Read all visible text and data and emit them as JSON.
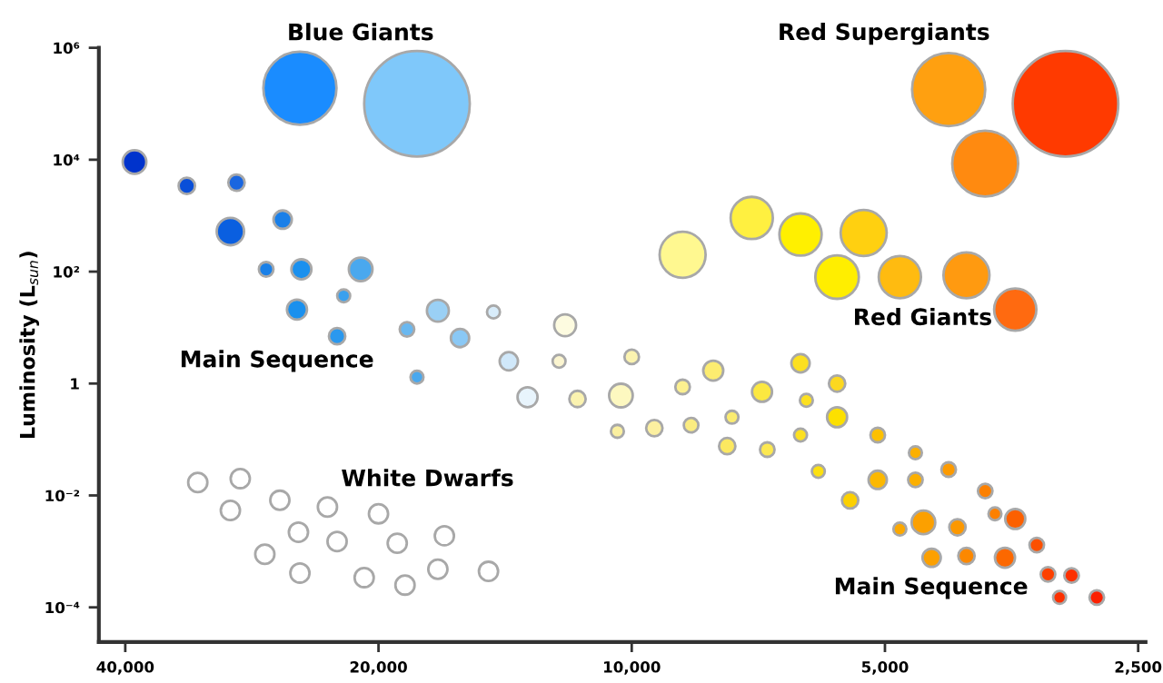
{
  "chart_data": {
    "type": "bubble",
    "ylabel": "Luminosity (L$_{sun}$)",
    "log": "xy",
    "grid": false,
    "legend": false,
    "xlim": [
      43000,
      2450
    ],
    "ylim": [
      2.4e-05,
      1000000
    ],
    "xticks": [
      {
        "value": 40000,
        "label": "40,000"
      },
      {
        "value": 20000,
        "label": "20,000"
      },
      {
        "value": 10000,
        "label": "10,000"
      },
      {
        "value": 5000,
        "label": "5,000"
      },
      {
        "value": 2500,
        "label": "2,500"
      }
    ],
    "yticks": [
      {
        "value": 0.0001,
        "label": "10⁻⁴"
      },
      {
        "value": 0.01,
        "label": "10⁻²"
      },
      {
        "value": 1,
        "label": "1"
      },
      {
        "value": 100,
        "label": "10²"
      },
      {
        "value": 10000,
        "label": "10⁴"
      },
      {
        "value": 1000000,
        "label": "10⁶"
      }
    ],
    "annotations": [
      "Blue Giants",
      "Red Supergiants",
      "Red Giants",
      "Main Sequence",
      "White Dwarfs",
      "Main Sequence"
    ],
    "series": [
      {
        "x": [
          24800,
          18000,
          39000,
          33800,
          29500,
          30000,
          26000,
          27200,
          24700,
          21000,
          25000,
          22000,
          22400,
          18500,
          17000,
          16000,
          14600,
          12000,
          18000,
          14000,
          12200,
          13300,
          11600,
          32800,
          29200,
          30000,
          26200,
          23000,
          20000,
          24900,
          22400,
          19000,
          16700,
          27300,
          24800,
          20800,
          18600,
          17000,
          14800,
          4200,
          3050,
          3800,
          8700,
          7200,
          6300,
          5300,
          5700,
          4800,
          4000,
          3500,
          10000,
          10300,
          10400,
          9400,
          8700,
          8000,
          8500,
          7600,
          7700,
          7000,
          6900,
          6300,
          6200,
          5700,
          5700,
          6300,
          6000,
          5500,
          5100,
          5100,
          4600,
          4600,
          4200,
          4800,
          4500,
          4100,
          3800,
          3700,
          3500,
          4400,
          4000,
          3600,
          3300,
          3200,
          3000,
          3100,
          2800
        ],
        "values": [
          190000,
          100000,
          9100,
          3400,
          3900,
          520,
          850,
          110,
          110,
          110,
          21,
          37,
          7.0,
          9.3,
          20,
          6.5,
          19,
          11,
          1.3,
          2.5,
          2.5,
          0.57,
          0.53,
          0.017,
          0.02,
          0.0054,
          0.0082,
          0.0062,
          0.0047,
          0.0022,
          0.0015,
          0.0014,
          0.0019,
          0.00089,
          0.00041,
          0.00034,
          0.00025,
          0.00048,
          0.00044,
          180000,
          100000,
          8500,
          200,
          910,
          460,
          490,
          80,
          80,
          86,
          21,
          3.0,
          0.61,
          0.14,
          0.16,
          0.87,
          1.7,
          0.18,
          0.25,
          0.076,
          0.71,
          0.066,
          2.3,
          0.5,
          1,
          0.25,
          0.12,
          0.027,
          0.0082,
          0.12,
          0.019,
          0.058,
          0.019,
          0.029,
          0.0025,
          0.0033,
          0.0027,
          0.012,
          0.0047,
          0.0038,
          0.00077,
          0.00083,
          0.00077,
          0.0013,
          0.00039,
          0.00037,
          0.00015,
          0.00015
        ],
        "sizes": [
          0.48,
          1,
          0.05,
          0.024,
          0.024,
          0.067,
          0.03,
          0.019,
          0.036,
          0.05,
          0.036,
          0.015,
          0.024,
          0.019,
          0.043,
          0.03,
          0.015,
          0.043,
          0.015,
          0.03,
          0.015,
          0.036,
          0.024,
          0.033,
          0.033,
          0.033,
          0.033,
          0.033,
          0.033,
          0.033,
          0.033,
          0.033,
          0.033,
          0.033,
          0.033,
          0.033,
          0.033,
          0.033,
          0.033,
          0.48,
          1,
          0.39,
          0.19,
          0.16,
          0.16,
          0.19,
          0.17,
          0.16,
          0.19,
          0.16,
          0.019,
          0.05,
          0.015,
          0.024,
          0.019,
          0.036,
          0.019,
          0.015,
          0.024,
          0.036,
          0.019,
          0.03,
          0.015,
          0.024,
          0.036,
          0.015,
          0.015,
          0.024,
          0.019,
          0.03,
          0.015,
          0.019,
          0.019,
          0.015,
          0.05,
          0.024,
          0.019,
          0.015,
          0.036,
          0.03,
          0.024,
          0.036,
          0.019,
          0.019,
          0.019,
          0.015,
          0.019
        ],
        "colors": [
          "#1a8cff",
          "#7fc8fa",
          "#0033cc",
          "#0a4fd8",
          "#1a66e0",
          "#0a5fe0",
          "#1a7fe8",
          "#1a80e8",
          "#1a90ee",
          "#4aa8ee",
          "#1a90ee",
          "#3aa0ee",
          "#2a98ee",
          "#6ab8f0",
          "#9ad0f5",
          "#8ac8f5",
          "#d8ecfa",
          "#fdfbe0",
          "#4aa8ee",
          "#d0e8fa",
          "#fbf5d0",
          "#e8f4fc",
          "#fbf3b0",
          "#ffffff",
          "#ffffff",
          "#ffffff",
          "#ffffff",
          "#ffffff",
          "#ffffff",
          "#ffffff",
          "#ffffff",
          "#ffffff",
          "#ffffff",
          "#ffffff",
          "#ffffff",
          "#ffffff",
          "#ffffff",
          "#ffffff",
          "#ffffff",
          "#ffa010",
          "#ff3a00",
          "#ff8a10",
          "#fff890",
          "#fff040",
          "#fff000",
          "#ffd010",
          "#ffee00",
          "#ffbb10",
          "#ff9a10",
          "#ff6a10",
          "#fbf3b0",
          "#fdf8c0",
          "#fbf0a0",
          "#fcf0a0",
          "#fcf090",
          "#fcec70",
          "#fbec80",
          "#fbec70",
          "#fce860",
          "#fce840",
          "#fce850",
          "#fce020",
          "#fce020",
          "#fcd820",
          "#fce000",
          "#fce020",
          "#fce010",
          "#fcd000",
          "#fcc000",
          "#fcb800",
          "#fcb000",
          "#fcb000",
          "#fc9a00",
          "#fca800",
          "#fca000",
          "#fc9800",
          "#fc8000",
          "#fc8000",
          "#fc6000",
          "#fca000",
          "#fc8800",
          "#fc6800",
          "#fc5000",
          "#fc4000",
          "#fc3000",
          "#fc3000",
          "#fc2000"
        ]
      }
    ]
  }
}
